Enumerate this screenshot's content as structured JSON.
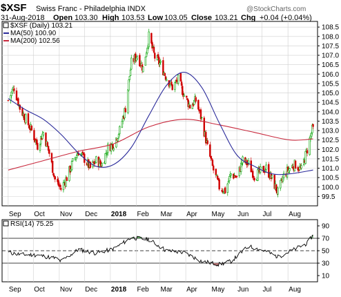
{
  "header": {
    "symbol": "$XSF",
    "name": "Swiss Franc - Philadelphia INDX",
    "date": "31-Aug-2018",
    "open_label": "Open",
    "open": "103.30",
    "high_label": "High",
    "high": "103.53",
    "low_label": "Low",
    "low": "103.05",
    "close_label": "Close",
    "close": "103.21",
    "chg_label": "Chg",
    "chg": "+0.04 (+0.04%)",
    "watermark": "@StockCharts.com"
  },
  "legend": {
    "main": "$XSF (Daily) 103.21",
    "ma50": "MA(50) 100.90",
    "ma200": "MA(200) 102.56",
    "rsi": "RSI(14) 75.25"
  },
  "colors": {
    "up_bar": "#00a000",
    "down_bar": "#d00000",
    "ma50": "#2a2a9a",
    "ma200": "#c8283c",
    "rsi_line": "#000000",
    "overbought_fill": "#5a9a5a",
    "oversold_fill": "#b07070",
    "grid": "#cfcfcf"
  },
  "chart_data": [
    {
      "type": "candlestick",
      "title": "$XSF (Daily) 103.21",
      "y_axis_position": "right",
      "ylim": [
        99.0,
        108.8
      ],
      "yticks": [
        "99.5",
        "100.0",
        "100.5",
        "101.0",
        "101.5",
        "102.0",
        "102.5",
        "103.0",
        "103.5",
        "104.0",
        "104.5",
        "105.0",
        "105.5",
        "106.0",
        "106.5",
        "107.0",
        "107.5",
        "108.0",
        "108.5"
      ],
      "x_tick_labels": [
        "Sep",
        "Oct",
        "Nov",
        "Dec",
        "2018",
        "Feb",
        "Mar",
        "Apr",
        "May",
        "Jun",
        "Jul",
        "Aug"
      ],
      "grid": true,
      "legend_position": "top-left",
      "ohlc_anchors": [
        {
          "date": "2017-09-01",
          "close": 104.6
        },
        {
          "date": "2017-09-08",
          "close": 105.3
        },
        {
          "date": "2017-09-15",
          "close": 104.2
        },
        {
          "date": "2017-09-22",
          "close": 103.6
        },
        {
          "date": "2017-09-29",
          "close": 103.0
        },
        {
          "date": "2017-10-06",
          "close": 102.2
        },
        {
          "date": "2017-10-13",
          "close": 102.9
        },
        {
          "date": "2017-10-20",
          "close": 101.8
        },
        {
          "date": "2017-10-27",
          "close": 100.4
        },
        {
          "date": "2017-11-03",
          "close": 99.9
        },
        {
          "date": "2017-11-10",
          "close": 100.5
        },
        {
          "date": "2017-11-17",
          "close": 101.3
        },
        {
          "date": "2017-11-24",
          "close": 101.9
        },
        {
          "date": "2017-12-01",
          "close": 101.5
        },
        {
          "date": "2017-12-08",
          "close": 101.0
        },
        {
          "date": "2017-12-15",
          "close": 101.4
        },
        {
          "date": "2017-12-22",
          "close": 101.2
        },
        {
          "date": "2017-12-29",
          "close": 102.1
        },
        {
          "date": "2018-01-05",
          "close": 102.3
        },
        {
          "date": "2018-01-12",
          "close": 103.0
        },
        {
          "date": "2018-01-19",
          "close": 104.2
        },
        {
          "date": "2018-01-26",
          "close": 106.6
        },
        {
          "date": "2018-02-02",
          "close": 107.0
        },
        {
          "date": "2018-02-09",
          "close": 106.3
        },
        {
          "date": "2018-02-16",
          "close": 108.0
        },
        {
          "date": "2018-02-23",
          "close": 106.9
        },
        {
          "date": "2018-03-02",
          "close": 106.5
        },
        {
          "date": "2018-03-09",
          "close": 105.8
        },
        {
          "date": "2018-03-16",
          "close": 105.3
        },
        {
          "date": "2018-03-23",
          "close": 105.7
        },
        {
          "date": "2018-03-30",
          "close": 104.9
        },
        {
          "date": "2018-04-06",
          "close": 104.3
        },
        {
          "date": "2018-04-13",
          "close": 104.6
        },
        {
          "date": "2018-04-20",
          "close": 103.6
        },
        {
          "date": "2018-04-27",
          "close": 102.1
        },
        {
          "date": "2018-05-04",
          "close": 100.9
        },
        {
          "date": "2018-05-11",
          "close": 100.0
        },
        {
          "date": "2018-05-18",
          "close": 99.8
        },
        {
          "date": "2018-05-25",
          "close": 100.7
        },
        {
          "date": "2018-06-01",
          "close": 100.5
        },
        {
          "date": "2018-06-08",
          "close": 101.4
        },
        {
          "date": "2018-06-15",
          "close": 101.2
        },
        {
          "date": "2018-06-22",
          "close": 100.6
        },
        {
          "date": "2018-06-29",
          "close": 100.8
        },
        {
          "date": "2018-07-06",
          "close": 101.0
        },
        {
          "date": "2018-07-13",
          "close": 100.4
        },
        {
          "date": "2018-07-20",
          "close": 99.7
        },
        {
          "date": "2018-07-27",
          "close": 100.6
        },
        {
          "date": "2018-08-03",
          "close": 101.0
        },
        {
          "date": "2018-08-10",
          "close": 101.2
        },
        {
          "date": "2018-08-17",
          "close": 100.9
        },
        {
          "date": "2018-08-24",
          "close": 102.0
        },
        {
          "date": "2018-08-31",
          "close": 103.21
        }
      ],
      "series": [
        {
          "name": "MA(50) 100.90",
          "points": [
            {
              "date": "2017-09-01",
              "value": 104.7
            },
            {
              "date": "2017-09-22",
              "value": 104.1
            },
            {
              "date": "2017-10-13",
              "value": 103.6
            },
            {
              "date": "2017-11-03",
              "value": 102.8
            },
            {
              "date": "2017-11-24",
              "value": 101.8
            },
            {
              "date": "2017-12-15",
              "value": 101.1
            },
            {
              "date": "2018-01-05",
              "value": 101.2
            },
            {
              "date": "2018-01-26",
              "value": 102.1
            },
            {
              "date": "2018-02-16",
              "value": 103.8
            },
            {
              "date": "2018-03-09",
              "value": 105.4
            },
            {
              "date": "2018-03-30",
              "value": 106.1
            },
            {
              "date": "2018-04-20",
              "value": 105.3
            },
            {
              "date": "2018-05-11",
              "value": 103.4
            },
            {
              "date": "2018-06-01",
              "value": 101.7
            },
            {
              "date": "2018-06-22",
              "value": 101.1
            },
            {
              "date": "2018-07-13",
              "value": 100.7
            },
            {
              "date": "2018-08-03",
              "value": 100.7
            },
            {
              "date": "2018-08-31",
              "value": 100.9
            }
          ]
        },
        {
          "name": "MA(200) 102.56",
          "points": [
            {
              "date": "2017-09-01",
              "value": 100.9
            },
            {
              "date": "2017-10-13",
              "value": 101.4
            },
            {
              "date": "2017-11-24",
              "value": 101.9
            },
            {
              "date": "2018-01-05",
              "value": 102.3
            },
            {
              "date": "2018-02-16",
              "value": 103.2
            },
            {
              "date": "2018-03-30",
              "value": 103.6
            },
            {
              "date": "2018-05-11",
              "value": 103.3
            },
            {
              "date": "2018-06-22",
              "value": 102.9
            },
            {
              "date": "2018-08-03",
              "value": 102.5
            },
            {
              "date": "2018-08-31",
              "value": 102.56
            }
          ]
        }
      ]
    },
    {
      "type": "line",
      "title": "RSI(14) 75.25",
      "y_axis_position": "right",
      "ylim": [
        0,
        100
      ],
      "yticks": [
        "10",
        "30",
        "50",
        "70",
        "90"
      ],
      "reference_lines": [
        30,
        50,
        70
      ],
      "x_tick_labels": [
        "Sep",
        "Oct",
        "Nov",
        "Dec",
        "2018",
        "Feb",
        "Mar",
        "Apr",
        "May",
        "Jun",
        "Jul",
        "Aug"
      ],
      "series": [
        {
          "name": "RSI(14) 75.25",
          "points": [
            {
              "date": "2017-09-01",
              "value": 47
            },
            {
              "date": "2017-09-15",
              "value": 44
            },
            {
              "date": "2017-10-06",
              "value": 43
            },
            {
              "date": "2017-10-27",
              "value": 38
            },
            {
              "date": "2017-11-03",
              "value": 33
            },
            {
              "date": "2017-11-24",
              "value": 52
            },
            {
              "date": "2017-12-15",
              "value": 46
            },
            {
              "date": "2018-01-05",
              "value": 53
            },
            {
              "date": "2018-01-26",
              "value": 71
            },
            {
              "date": "2018-02-16",
              "value": 68
            },
            {
              "date": "2018-03-09",
              "value": 50
            },
            {
              "date": "2018-03-30",
              "value": 47
            },
            {
              "date": "2018-04-20",
              "value": 33
            },
            {
              "date": "2018-05-11",
              "value": 28
            },
            {
              "date": "2018-05-25",
              "value": 33
            },
            {
              "date": "2018-06-15",
              "value": 57
            },
            {
              "date": "2018-07-06",
              "value": 49
            },
            {
              "date": "2018-07-20",
              "value": 40
            },
            {
              "date": "2018-08-10",
              "value": 53
            },
            {
              "date": "2018-08-24",
              "value": 62
            },
            {
              "date": "2018-08-31",
              "value": 75.25
            }
          ]
        }
      ]
    }
  ]
}
